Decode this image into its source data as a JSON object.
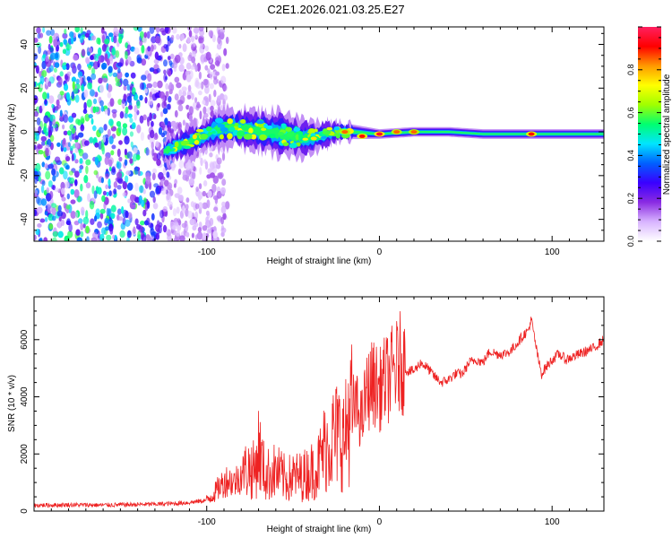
{
  "figure_title": "C2E1.2026.021.03.25.E27",
  "chart_data": [
    {
      "type": "heatmap",
      "title": "C2E1.2026.021.03.25.E27",
      "xlabel": "Height of straight line (km)",
      "ylabel": "Frequency (Hz)",
      "xlim": [
        -200,
        130
      ],
      "ylim": [
        -50,
        48
      ],
      "xticks": [
        -100,
        0,
        100
      ],
      "yticks": [
        -40,
        -20,
        0,
        20,
        40
      ],
      "colorbar": {
        "label": "Normalized spectral amplitude",
        "range": [
          0,
          1
        ],
        "ticks": [
          "0.0",
          "0.2",
          "0.4",
          "0.6",
          "0.8"
        ],
        "colors": [
          "#ffffff",
          "#d8b4ff",
          "#8a2be2",
          "#3a00ff",
          "#0060ff",
          "#00e5ff",
          "#00ff70",
          "#a0ff00",
          "#ffff00",
          "#ff9900",
          "#ff0000",
          "#ff2060"
        ]
      },
      "noise_region": {
        "x_from": -200,
        "x_to": -100,
        "description": "broadband noise"
      },
      "ridge": {
        "x": [
          -125,
          -115,
          -105,
          -95,
          -85,
          -75,
          -65,
          -55,
          -45,
          -35,
          -25,
          -15,
          0,
          20,
          40,
          60,
          80,
          90,
          100,
          130
        ],
        "freq": [
          -9,
          -6,
          -3,
          1,
          2,
          1,
          0,
          -1,
          -3,
          -2,
          0,
          0,
          -1,
          0,
          0,
          -1,
          -1,
          -1,
          -1,
          -1
        ],
        "width": [
          5,
          6,
          7,
          8,
          8,
          8,
          9,
          10,
          8,
          6,
          4,
          3,
          2,
          2,
          2,
          2,
          2,
          2,
          2,
          2
        ]
      },
      "hotspots": [
        {
          "x": -38,
          "freq": -3,
          "amp": 0.75
        },
        {
          "x": -20,
          "freq": 0,
          "amp": 0.85
        },
        {
          "x": -10,
          "freq": -2,
          "amp": 0.9
        },
        {
          "x": 0,
          "freq": -1,
          "amp": 0.95
        },
        {
          "x": 10,
          "freq": 0,
          "amp": 0.85
        },
        {
          "x": 20,
          "freq": 0,
          "amp": 0.85
        },
        {
          "x": 88,
          "freq": -1,
          "amp": 0.9
        }
      ]
    },
    {
      "type": "line",
      "xlabel": "Height of straight line (km)",
      "ylabel": "SNR (10 * v/v)",
      "xlim": [
        -200,
        130
      ],
      "ylim": [
        0,
        7500
      ],
      "xticks": [
        -100,
        0,
        100
      ],
      "yticks": [
        0,
        2000,
        4000,
        6000
      ],
      "line_color": "#ee2222",
      "series": [
        {
          "name": "SNR",
          "x": [
            -200,
            -180,
            -160,
            -140,
            -120,
            -110,
            -100,
            -96,
            -92,
            -88,
            -84,
            -80,
            -76,
            -72,
            -70,
            -66,
            -62,
            -58,
            -54,
            -50,
            -46,
            -42,
            -40,
            -36,
            -32,
            -28,
            -24,
            -20,
            -18,
            -14,
            -10,
            -8,
            -6,
            -4,
            -2,
            0,
            2,
            4,
            6,
            8,
            10,
            12,
            14,
            16,
            18,
            20,
            24,
            28,
            32,
            36,
            40,
            44,
            48,
            52,
            56,
            60,
            64,
            68,
            72,
            76,
            80,
            84,
            86,
            88,
            90,
            92,
            94,
            96,
            100,
            104,
            108,
            112,
            116,
            120,
            124,
            128,
            130
          ],
          "y": [
            200,
            220,
            210,
            230,
            260,
            300,
            380,
            600,
            900,
            1100,
            1000,
            1300,
            1500,
            1400,
            2200,
            1200,
            1400,
            1300,
            1100,
            1200,
            1200,
            1300,
            1400,
            1500,
            2200,
            2500,
            2700,
            2500,
            3300,
            3700,
            3200,
            4000,
            4300,
            4500,
            4400,
            4200,
            4500,
            4600,
            4700,
            4900,
            5000,
            5200,
            5100,
            4900,
            4900,
            4900,
            5200,
            5000,
            4700,
            4500,
            4600,
            4800,
            4800,
            5200,
            5300,
            5200,
            5600,
            5500,
            5500,
            5600,
            5900,
            6200,
            6300,
            6700,
            6000,
            5300,
            4800,
            5000,
            5300,
            5500,
            5300,
            5400,
            5500,
            5600,
            5700,
            5900,
            6000
          ]
        }
      ]
    }
  ]
}
